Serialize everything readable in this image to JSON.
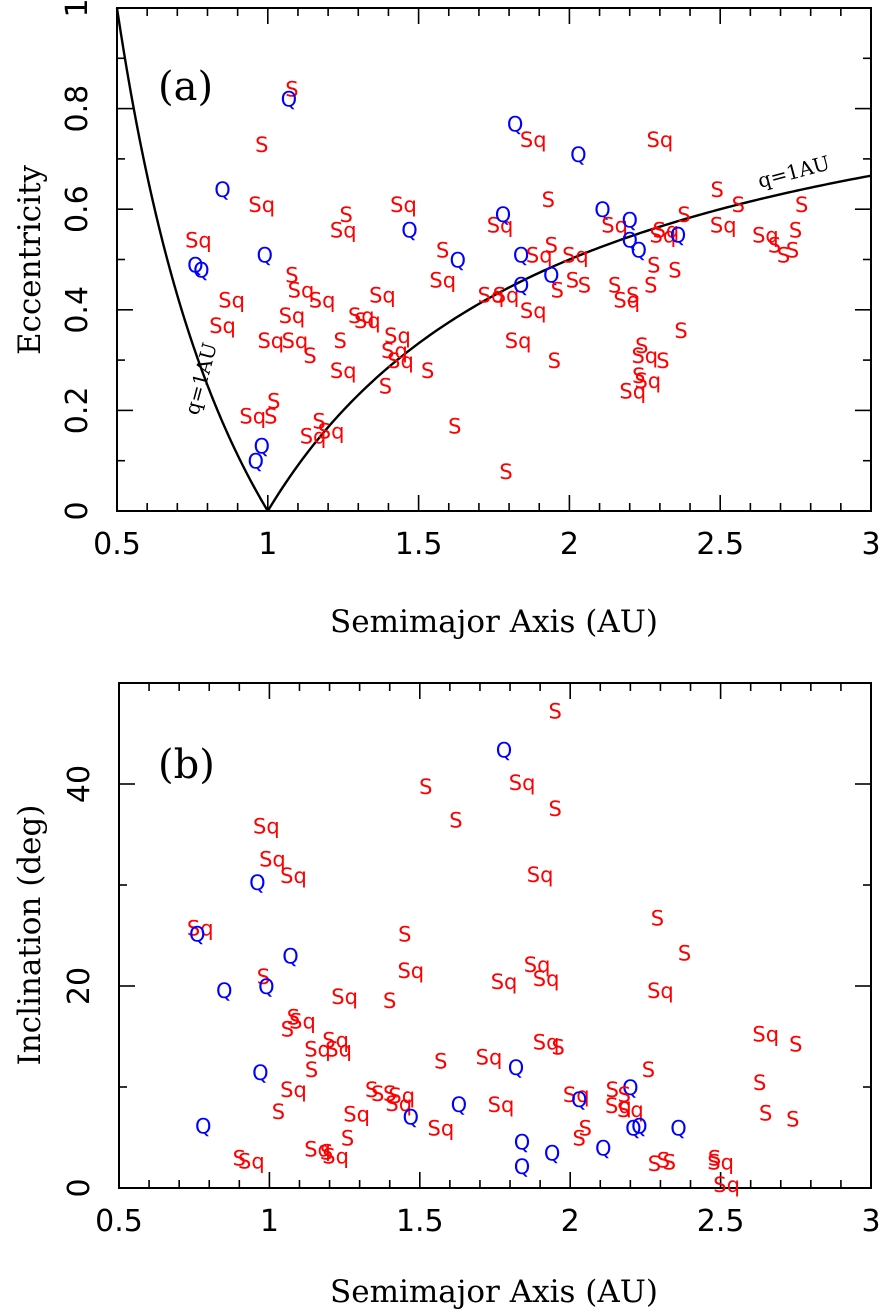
{
  "chart_data": [
    {
      "type": "scatter",
      "panel_label": "(a)",
      "xlabel": "Semimajor Axis (AU)",
      "ylabel": "Eccentricity",
      "xlim": [
        0.5,
        3
      ],
      "ylim": [
        0,
        1
      ],
      "xticks": [
        0.5,
        1,
        1.5,
        2,
        2.5,
        3
      ],
      "xtick_labels": [
        "0.5",
        "1",
        "1.5",
        "2",
        "2.5",
        "3"
      ],
      "yticks": [
        0,
        0.2,
        0.4,
        0.6,
        0.8,
        1
      ],
      "ytick_labels": [
        "0",
        "0.2",
        "0.4",
        "0.6",
        "0.8",
        "1"
      ],
      "curves": [
        {
          "label": "q=1AU",
          "function": "e = 1/a - 1",
          "x_range": [
            0.5,
            1
          ]
        },
        {
          "label": "q=1AU",
          "function": "e = 1 - 1/a",
          "x_range": [
            1,
            3
          ]
        }
      ],
      "colors": {
        "S": "#ff0000",
        "Sq": "#ff0000",
        "Q": "#0000ff"
      },
      "points": [
        {
          "type": "S",
          "x": 1.08,
          "y": 0.84
        },
        {
          "type": "Q",
          "x": 1.07,
          "y": 0.82
        },
        {
          "type": "S",
          "x": 0.98,
          "y": 0.73
        },
        {
          "type": "Q",
          "x": 0.85,
          "y": 0.64
        },
        {
          "type": "Sq",
          "x": 0.98,
          "y": 0.61
        },
        {
          "type": "Sq",
          "x": 0.77,
          "y": 0.54
        },
        {
          "type": "Q",
          "x": 0.76,
          "y": 0.49
        },
        {
          "type": "Q",
          "x": 0.78,
          "y": 0.48
        },
        {
          "type": "Q",
          "x": 0.99,
          "y": 0.51
        },
        {
          "type": "Sq",
          "x": 0.88,
          "y": 0.42
        },
        {
          "type": "Sq",
          "x": 0.85,
          "y": 0.37
        },
        {
          "type": "S",
          "x": 1.08,
          "y": 0.47
        },
        {
          "type": "Sq",
          "x": 1.11,
          "y": 0.44
        },
        {
          "type": "Sq",
          "x": 1.18,
          "y": 0.42
        },
        {
          "type": "Sq",
          "x": 1.08,
          "y": 0.39
        },
        {
          "type": "Sq",
          "x": 1.01,
          "y": 0.34
        },
        {
          "type": "Sq",
          "x": 1.09,
          "y": 0.34
        },
        {
          "type": "S",
          "x": 1.14,
          "y": 0.31
        },
        {
          "type": "Sq",
          "x": 1.25,
          "y": 0.56
        },
        {
          "type": "S",
          "x": 1.26,
          "y": 0.59
        },
        {
          "type": "Sq",
          "x": 1.31,
          "y": 0.39
        },
        {
          "type": "Sq",
          "x": 1.33,
          "y": 0.38
        },
        {
          "type": "S",
          "x": 1.24,
          "y": 0.34
        },
        {
          "type": "Sq",
          "x": 1.25,
          "y": 0.28
        },
        {
          "type": "Sq",
          "x": 1.38,
          "y": 0.43
        },
        {
          "type": "Sq",
          "x": 1.45,
          "y": 0.61
        },
        {
          "type": "Q",
          "x": 1.47,
          "y": 0.56
        },
        {
          "type": "Sq",
          "x": 1.43,
          "y": 0.35
        },
        {
          "type": "Sq",
          "x": 1.42,
          "y": 0.32
        },
        {
          "type": "Sq",
          "x": 1.44,
          "y": 0.3
        },
        {
          "type": "S",
          "x": 1.39,
          "y": 0.25
        },
        {
          "type": "S",
          "x": 1.53,
          "y": 0.28
        },
        {
          "type": "Sq",
          "x": 0.95,
          "y": 0.19
        },
        {
          "type": "S",
          "x": 1.02,
          "y": 0.22
        },
        {
          "type": "S",
          "x": 1.01,
          "y": 0.19
        },
        {
          "type": "Q",
          "x": 0.98,
          "y": 0.13
        },
        {
          "type": "Q",
          "x": 0.96,
          "y": 0.1
        },
        {
          "type": "Sq",
          "x": 1.15,
          "y": 0.15
        },
        {
          "type": "Sq",
          "x": 1.21,
          "y": 0.16
        },
        {
          "type": "S",
          "x": 1.17,
          "y": 0.18
        },
        {
          "type": "S",
          "x": 1.58,
          "y": 0.52
        },
        {
          "type": "Sq",
          "x": 1.58,
          "y": 0.46
        },
        {
          "type": "Q",
          "x": 1.63,
          "y": 0.5
        },
        {
          "type": "S",
          "x": 1.62,
          "y": 0.17
        },
        {
          "type": "Sq",
          "x": 1.77,
          "y": 0.57
        },
        {
          "type": "Q",
          "x": 1.78,
          "y": 0.59
        },
        {
          "type": "Sq",
          "x": 1.74,
          "y": 0.43
        },
        {
          "type": "Sq",
          "x": 1.79,
          "y": 0.43
        },
        {
          "type": "Q",
          "x": 1.84,
          "y": 0.45
        },
        {
          "type": "Q",
          "x": 1.84,
          "y": 0.51
        },
        {
          "type": "Sq",
          "x": 1.83,
          "y": 0.34
        },
        {
          "type": "Sq",
          "x": 1.88,
          "y": 0.4
        },
        {
          "type": "S",
          "x": 1.79,
          "y": 0.08
        },
        {
          "type": "Q",
          "x": 1.82,
          "y": 0.77
        },
        {
          "type": "Sq",
          "x": 1.88,
          "y": 0.74
        },
        {
          "type": "Q",
          "x": 2.03,
          "y": 0.71
        },
        {
          "type": "S",
          "x": 1.93,
          "y": 0.62
        },
        {
          "type": "Sq",
          "x": 1.9,
          "y": 0.51
        },
        {
          "type": "S",
          "x": 1.94,
          "y": 0.53
        },
        {
          "type": "Q",
          "x": 1.94,
          "y": 0.47
        },
        {
          "type": "S",
          "x": 1.96,
          "y": 0.44
        },
        {
          "type": "S",
          "x": 1.95,
          "y": 0.3
        },
        {
          "type": "Sq",
          "x": 2.02,
          "y": 0.51
        },
        {
          "type": "S",
          "x": 2.01,
          "y": 0.46
        },
        {
          "type": "S",
          "x": 2.05,
          "y": 0.45
        },
        {
          "type": "Q",
          "x": 2.11,
          "y": 0.6
        },
        {
          "type": "Sq",
          "x": 2.15,
          "y": 0.57
        },
        {
          "type": "Q",
          "x": 2.2,
          "y": 0.58
        },
        {
          "type": "Q",
          "x": 2.2,
          "y": 0.54
        },
        {
          "type": "Q",
          "x": 2.23,
          "y": 0.52
        },
        {
          "type": "S",
          "x": 2.15,
          "y": 0.45
        },
        {
          "type": "Sq",
          "x": 2.19,
          "y": 0.42
        },
        {
          "type": "S",
          "x": 2.21,
          "y": 0.43
        },
        {
          "type": "S",
          "x": 2.24,
          "y": 0.33
        },
        {
          "type": "S",
          "x": 2.27,
          "y": 0.45
        },
        {
          "type": "S",
          "x": 2.28,
          "y": 0.49
        },
        {
          "type": "Sq",
          "x": 2.31,
          "y": 0.55
        },
        {
          "type": "Sq",
          "x": 2.32,
          "y": 0.56
        },
        {
          "type": "Q",
          "x": 2.36,
          "y": 0.55
        },
        {
          "type": "S",
          "x": 2.35,
          "y": 0.48
        },
        {
          "type": "S",
          "x": 2.37,
          "y": 0.36
        },
        {
          "type": "S",
          "x": 2.38,
          "y": 0.59
        },
        {
          "type": "Sq",
          "x": 2.3,
          "y": 0.74
        },
        {
          "type": "Sq",
          "x": 2.25,
          "y": 0.31
        },
        {
          "type": "S",
          "x": 2.31,
          "y": 0.3
        },
        {
          "type": "Sq",
          "x": 2.26,
          "y": 0.26
        },
        {
          "type": "Sq",
          "x": 2.21,
          "y": 0.24
        },
        {
          "type": "S",
          "x": 2.23,
          "y": 0.27
        },
        {
          "type": "S",
          "x": 2.49,
          "y": 0.64
        },
        {
          "type": "Sq",
          "x": 2.51,
          "y": 0.57
        },
        {
          "type": "S",
          "x": 2.56,
          "y": 0.61
        },
        {
          "type": "Sq",
          "x": 2.65,
          "y": 0.55
        },
        {
          "type": "S",
          "x": 2.68,
          "y": 0.53
        },
        {
          "type": "S",
          "x": 2.71,
          "y": 0.51
        },
        {
          "type": "S",
          "x": 2.74,
          "y": 0.52
        },
        {
          "type": "S",
          "x": 2.75,
          "y": 0.56
        },
        {
          "type": "S",
          "x": 2.77,
          "y": 0.61
        }
      ]
    },
    {
      "type": "scatter",
      "panel_label": "(b)",
      "xlabel": "Semimajor Axis (AU)",
      "ylabel": "Inclination (deg)",
      "xlim": [
        0.5,
        3
      ],
      "ylim": [
        0,
        50
      ],
      "xticks": [
        0.5,
        1,
        1.5,
        2,
        2.5,
        3
      ],
      "xtick_labels": [
        "0.5",
        "1",
        "1.5",
        "2",
        "2.5",
        "3"
      ],
      "yticks": [
        0,
        20,
        40
      ],
      "ytick_labels": [
        "0",
        "20",
        "40"
      ],
      "colors": {
        "S": "#ff0000",
        "Sq": "#ff0000",
        "Q": "#0000ff"
      },
      "points": [
        {
          "type": "S",
          "x": 1.95,
          "y": 47.3
        },
        {
          "type": "Q",
          "x": 1.78,
          "y": 43.4
        },
        {
          "type": "Sq",
          "x": 1.84,
          "y": 40.2
        },
        {
          "type": "S",
          "x": 1.52,
          "y": 39.8
        },
        {
          "type": "S",
          "x": 1.95,
          "y": 37.6
        },
        {
          "type": "S",
          "x": 1.62,
          "y": 36.5
        },
        {
          "type": "Sq",
          "x": 0.99,
          "y": 35.9
        },
        {
          "type": "Sq",
          "x": 1.01,
          "y": 32.6
        },
        {
          "type": "Sq",
          "x": 1.08,
          "y": 31.0
        },
        {
          "type": "Q",
          "x": 0.96,
          "y": 30.3
        },
        {
          "type": "Sq",
          "x": 1.9,
          "y": 31.1
        },
        {
          "type": "S",
          "x": 2.29,
          "y": 26.8
        },
        {
          "type": "Sq",
          "x": 0.77,
          "y": 25.8
        },
        {
          "type": "Q",
          "x": 0.76,
          "y": 25.2
        },
        {
          "type": "S",
          "x": 1.45,
          "y": 25.2
        },
        {
          "type": "S",
          "x": 2.38,
          "y": 23.3
        },
        {
          "type": "Q",
          "x": 1.07,
          "y": 23.0
        },
        {
          "type": "Sq",
          "x": 1.89,
          "y": 22.2
        },
        {
          "type": "Sq",
          "x": 1.47,
          "y": 21.6
        },
        {
          "type": "Sq",
          "x": 1.92,
          "y": 20.8
        },
        {
          "type": "Sq",
          "x": 1.78,
          "y": 20.5
        },
        {
          "type": "S",
          "x": 0.98,
          "y": 21.0
        },
        {
          "type": "Q",
          "x": 0.99,
          "y": 20.0
        },
        {
          "type": "Q",
          "x": 0.85,
          "y": 19.6
        },
        {
          "type": "Sq",
          "x": 2.3,
          "y": 19.6
        },
        {
          "type": "Sq",
          "x": 1.25,
          "y": 19.0
        },
        {
          "type": "S",
          "x": 1.4,
          "y": 18.6
        },
        {
          "type": "S",
          "x": 1.08,
          "y": 17.0
        },
        {
          "type": "Sq",
          "x": 1.11,
          "y": 16.6
        },
        {
          "type": "S",
          "x": 1.06,
          "y": 15.8
        },
        {
          "type": "Sq",
          "x": 1.22,
          "y": 14.7
        },
        {
          "type": "Sq",
          "x": 1.16,
          "y": 13.8
        },
        {
          "type": "Sq",
          "x": 1.23,
          "y": 13.8
        },
        {
          "type": "Sq",
          "x": 2.65,
          "y": 15.3
        },
        {
          "type": "S",
          "x": 2.75,
          "y": 14.3
        },
        {
          "type": "Sq",
          "x": 1.92,
          "y": 14.5
        },
        {
          "type": "S",
          "x": 1.96,
          "y": 14.0
        },
        {
          "type": "Sq",
          "x": 1.73,
          "y": 13.0
        },
        {
          "type": "S",
          "x": 1.57,
          "y": 12.6
        },
        {
          "type": "Q",
          "x": 1.82,
          "y": 12.0
        },
        {
          "type": "S",
          "x": 2.26,
          "y": 11.8
        },
        {
          "type": "S",
          "x": 1.14,
          "y": 11.8
        },
        {
          "type": "Q",
          "x": 0.97,
          "y": 11.5
        },
        {
          "type": "S",
          "x": 2.63,
          "y": 10.5
        },
        {
          "type": "Q",
          "x": 2.2,
          "y": 10.0
        },
        {
          "type": "Sq",
          "x": 1.08,
          "y": 9.8
        },
        {
          "type": "S",
          "x": 2.14,
          "y": 9.8
        },
        {
          "type": "S",
          "x": 1.34,
          "y": 9.8
        },
        {
          "type": "S",
          "x": 1.36,
          "y": 9.4
        },
        {
          "type": "Sq",
          "x": 1.44,
          "y": 9.2
        },
        {
          "type": "S",
          "x": 1.4,
          "y": 9.4
        },
        {
          "type": "Sq",
          "x": 2.02,
          "y": 9.3
        },
        {
          "type": "S",
          "x": 2.18,
          "y": 9.3
        },
        {
          "type": "Sq",
          "x": 1.43,
          "y": 8.4
        },
        {
          "type": "Sq",
          "x": 1.77,
          "y": 8.3
        },
        {
          "type": "Q",
          "x": 2.03,
          "y": 8.8
        },
        {
          "type": "Q",
          "x": 1.63,
          "y": 8.3
        },
        {
          "type": "Sq",
          "x": 2.16,
          "y": 8.2
        },
        {
          "type": "Sq",
          "x": 2.2,
          "y": 7.8
        },
        {
          "type": "Sq",
          "x": 1.29,
          "y": 7.4
        },
        {
          "type": "S",
          "x": 1.03,
          "y": 7.6
        },
        {
          "type": "S",
          "x": 2.65,
          "y": 7.5
        },
        {
          "type": "S",
          "x": 2.74,
          "y": 6.9
        },
        {
          "type": "Q",
          "x": 1.47,
          "y": 7.1
        },
        {
          "type": "Q",
          "x": 0.78,
          "y": 6.2
        },
        {
          "type": "Sq",
          "x": 1.57,
          "y": 6.0
        },
        {
          "type": "Q",
          "x": 2.21,
          "y": 6.0
        },
        {
          "type": "Q",
          "x": 2.23,
          "y": 6.2
        },
        {
          "type": "Q",
          "x": 2.36,
          "y": 6.0
        },
        {
          "type": "S",
          "x": 2.05,
          "y": 6.0
        },
        {
          "type": "S",
          "x": 2.03,
          "y": 5.0
        },
        {
          "type": "S",
          "x": 1.26,
          "y": 5.0
        },
        {
          "type": "Sq",
          "x": 1.16,
          "y": 3.9
        },
        {
          "type": "Sq",
          "x": 1.22,
          "y": 3.2
        },
        {
          "type": "S",
          "x": 1.19,
          "y": 3.6
        },
        {
          "type": "Q",
          "x": 1.84,
          "y": 4.6
        },
        {
          "type": "Q",
          "x": 2.11,
          "y": 4.0
        },
        {
          "type": "Q",
          "x": 1.94,
          "y": 3.5
        },
        {
          "type": "Q",
          "x": 1.84,
          "y": 2.2
        },
        {
          "type": "S",
          "x": 0.9,
          "y": 3.0
        },
        {
          "type": "Sq",
          "x": 0.94,
          "y": 2.7
        },
        {
          "type": "S",
          "x": 2.28,
          "y": 2.5
        },
        {
          "type": "S",
          "x": 2.31,
          "y": 2.8
        },
        {
          "type": "S",
          "x": 2.33,
          "y": 2.6
        },
        {
          "type": "Sq",
          "x": 2.5,
          "y": 2.6
        },
        {
          "type": "S",
          "x": 2.48,
          "y": 3.0
        },
        {
          "type": "Sq",
          "x": 2.52,
          "y": 0.4
        }
      ]
    }
  ]
}
